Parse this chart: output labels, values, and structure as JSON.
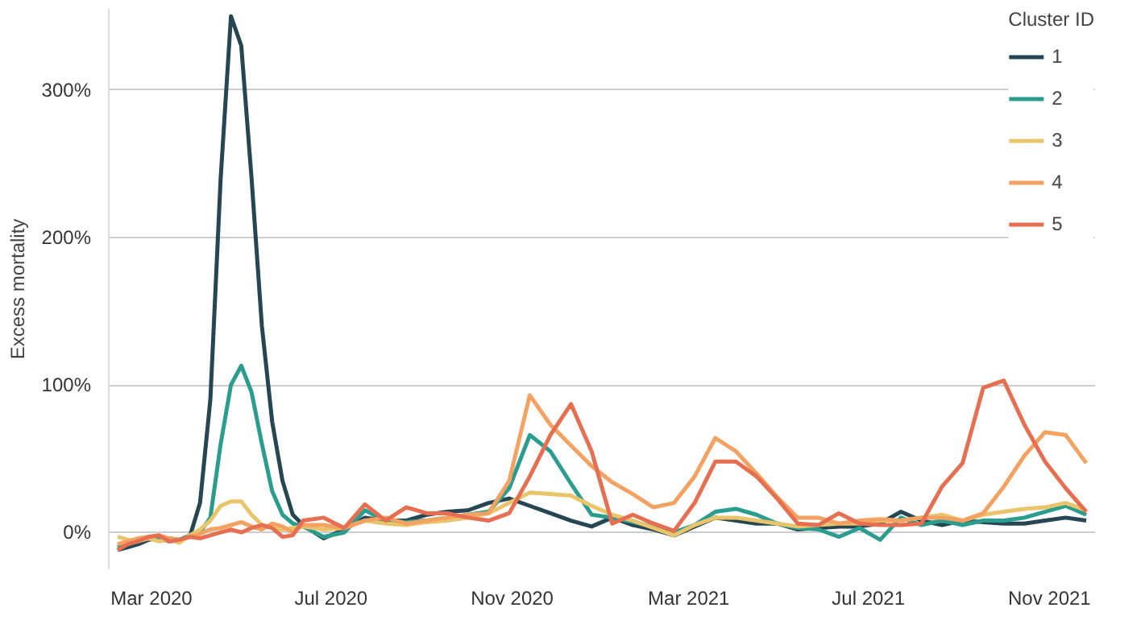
{
  "chart_data": {
    "type": "line",
    "ylabel": "Excess mortality",
    "legend_title": "Cluster ID",
    "legend": "right",
    "grid": "y",
    "line_style": "solid",
    "x": [
      "2020-02-07",
      "2020-02-14",
      "2020-02-21",
      "2020-02-28",
      "2020-03-06",
      "2020-03-13",
      "2020-03-20",
      "2020-03-27",
      "2020-04-03",
      "2020-04-10",
      "2020-04-17",
      "2020-04-24",
      "2020-05-01",
      "2020-05-08",
      "2020-05-15",
      "2020-05-22",
      "2020-05-29",
      "2020-06-05",
      "2020-06-12",
      "2020-06-26",
      "2020-07-10",
      "2020-07-24",
      "2020-08-07",
      "2020-08-21",
      "2020-09-04",
      "2020-09-18",
      "2020-10-02",
      "2020-10-16",
      "2020-10-30",
      "2020-11-13",
      "2020-11-27",
      "2020-12-11",
      "2020-12-25",
      "2021-01-08",
      "2021-01-22",
      "2021-02-05",
      "2021-02-19",
      "2021-03-05",
      "2021-03-19",
      "2021-04-02",
      "2021-04-16",
      "2021-04-30",
      "2021-05-14",
      "2021-05-28",
      "2021-06-11",
      "2021-06-25",
      "2021-07-09",
      "2021-07-23",
      "2021-08-06",
      "2021-08-20",
      "2021-09-03",
      "2021-09-17",
      "2021-10-01",
      "2021-10-15",
      "2021-10-29",
      "2021-11-12",
      "2021-11-26"
    ],
    "xlim": [
      "2020-02-01",
      "2021-12-02"
    ],
    "xticks": [
      {
        "value": "2020-03-01",
        "label": "Mar 2020"
      },
      {
        "value": "2020-07-01",
        "label": "Jul 2020"
      },
      {
        "value": "2020-11-01",
        "label": "Nov 2020"
      },
      {
        "value": "2021-03-01",
        "label": "Mar 2021"
      },
      {
        "value": "2021-07-01",
        "label": "Jul 2021"
      },
      {
        "value": "2021-11-01",
        "label": "Nov 2021"
      }
    ],
    "ylim": [
      -25,
      355
    ],
    "yticks": [
      {
        "value": 0,
        "label": "0%"
      },
      {
        "value": 100,
        "label": "100%"
      },
      {
        "value": 200,
        "label": "200%"
      },
      {
        "value": 300,
        "label": "300%"
      }
    ],
    "series": [
      {
        "name": "1",
        "color": "#264653",
        "values": [
          -12,
          -10,
          -8,
          -5,
          -4,
          -6,
          -5,
          -3,
          20,
          90,
          240,
          350,
          330,
          240,
          140,
          75,
          35,
          12,
          5,
          -4,
          2,
          10,
          8,
          8,
          12,
          14,
          15,
          20,
          23,
          18,
          13,
          8,
          4,
          10,
          5,
          2,
          -2,
          4,
          10,
          8,
          6,
          6,
          2,
          3,
          4,
          4,
          6,
          14,
          8,
          5,
          8,
          7,
          6,
          6,
          8,
          10,
          8
        ]
      },
      {
        "name": "2",
        "color": "#2a9d8f",
        "values": [
          -10,
          -8,
          -6,
          -4,
          -5,
          -4,
          -5,
          -2,
          0,
          10,
          60,
          100,
          113,
          95,
          60,
          28,
          12,
          6,
          4,
          -3,
          0,
          15,
          8,
          7,
          8,
          10,
          12,
          14,
          30,
          66,
          55,
          33,
          12,
          10,
          7,
          4,
          0,
          5,
          14,
          16,
          12,
          6,
          3,
          2,
          -3,
          3,
          -5,
          10,
          5,
          8,
          5,
          8,
          8,
          10,
          14,
          18,
          12
        ]
      },
      {
        "name": "3",
        "color": "#e9c46a",
        "values": [
          -3,
          -5,
          -6,
          -4,
          -6,
          -5,
          -7,
          -2,
          2,
          8,
          18,
          21,
          21,
          12,
          5,
          3,
          2,
          3,
          4,
          2,
          3,
          8,
          6,
          5,
          7,
          8,
          10,
          13,
          20,
          27,
          26,
          25,
          18,
          12,
          8,
          3,
          -2,
          5,
          10,
          10,
          8,
          6,
          4,
          5,
          6,
          6,
          8,
          8,
          10,
          12,
          8,
          12,
          14,
          16,
          17,
          20,
          15
        ]
      },
      {
        "name": "4",
        "color": "#f4a261",
        "values": [
          -8,
          -6,
          -4,
          -3,
          -2,
          -4,
          -5,
          -3,
          -1,
          2,
          3,
          5,
          7,
          4,
          2,
          6,
          4,
          0,
          5,
          5,
          3,
          8,
          10,
          6,
          8,
          10,
          12,
          13,
          35,
          93,
          73,
          59,
          45,
          34,
          26,
          17,
          20,
          38,
          64,
          55,
          40,
          24,
          10,
          10,
          6,
          8,
          9,
          8,
          10,
          10,
          8,
          13,
          31,
          52,
          68,
          66,
          47
        ]
      },
      {
        "name": "5",
        "color": "#e76f51",
        "values": [
          -12,
          -8,
          -6,
          -3,
          -2,
          -6,
          -5,
          -3,
          -4,
          -2,
          0,
          2,
          0,
          3,
          5,
          3,
          -3,
          -2,
          8,
          10,
          3,
          19,
          8,
          17,
          13,
          13,
          10,
          8,
          13,
          38,
          66,
          87,
          55,
          6,
          12,
          6,
          1,
          20,
          48,
          48,
          38,
          23,
          6,
          5,
          13,
          6,
          5,
          5,
          6,
          31,
          47,
          98,
          103,
          73,
          48,
          30,
          14
        ]
      }
    ]
  }
}
